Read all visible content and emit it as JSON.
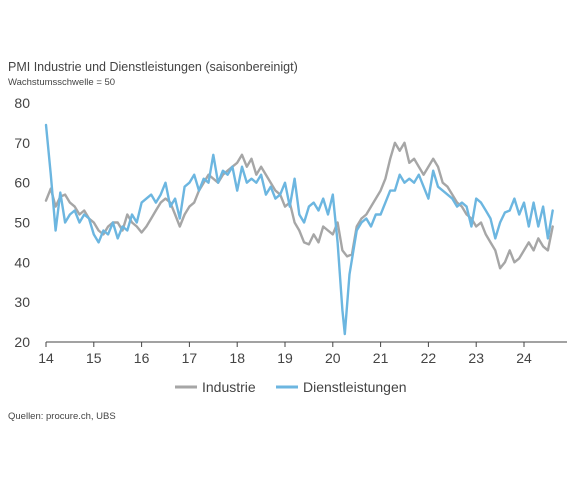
{
  "title": "PMI Industrie und Dienstleistungen (saisonbereinigt)",
  "subtitle": "Wachstumsschwelle = 50",
  "source": "Quellen: procure.ch, UBS",
  "chart_data": {
    "type": "line",
    "ylim": [
      20,
      80
    ],
    "yticks": [
      20,
      30,
      40,
      50,
      60,
      70,
      80
    ],
    "xlim": [
      2014,
      2024.9
    ],
    "xticks": [
      "14",
      "15",
      "16",
      "17",
      "18",
      "19",
      "20",
      "21",
      "22",
      "23",
      "24"
    ],
    "grid": false,
    "legend_position": "bottom",
    "colors": {
      "Industrie": "#a6a6a6",
      "Dienstleistungen": "#6cb6e0"
    },
    "series": [
      {
        "name": "Industrie",
        "color": "#a6a6a6",
        "points": [
          [
            2014.0,
            55.5
          ],
          [
            2014.1,
            58.5
          ],
          [
            2014.2,
            54
          ],
          [
            2014.3,
            56.5
          ],
          [
            2014.4,
            57
          ],
          [
            2014.5,
            55
          ],
          [
            2014.6,
            54
          ],
          [
            2014.7,
            52
          ],
          [
            2014.8,
            53
          ],
          [
            2014.9,
            51
          ],
          [
            2015.0,
            50
          ],
          [
            2015.1,
            48
          ],
          [
            2015.2,
            47
          ],
          [
            2015.3,
            49
          ],
          [
            2015.4,
            50
          ],
          [
            2015.5,
            50
          ],
          [
            2015.6,
            48
          ],
          [
            2015.7,
            52
          ],
          [
            2015.8,
            50
          ],
          [
            2015.9,
            49
          ],
          [
            2016.0,
            47.5
          ],
          [
            2016.1,
            49
          ],
          [
            2016.2,
            51
          ],
          [
            2016.3,
            53
          ],
          [
            2016.4,
            55
          ],
          [
            2016.5,
            56
          ],
          [
            2016.6,
            55
          ],
          [
            2016.7,
            52
          ],
          [
            2016.8,
            49
          ],
          [
            2016.9,
            52
          ],
          [
            2017.0,
            54
          ],
          [
            2017.1,
            55
          ],
          [
            2017.2,
            58
          ],
          [
            2017.3,
            60
          ],
          [
            2017.4,
            62
          ],
          [
            2017.5,
            61
          ],
          [
            2017.6,
            60
          ],
          [
            2017.7,
            62
          ],
          [
            2017.8,
            63
          ],
          [
            2017.9,
            64
          ],
          [
            2018.0,
            65
          ],
          [
            2018.1,
            67
          ],
          [
            2018.2,
            64
          ],
          [
            2018.3,
            66
          ],
          [
            2018.4,
            62
          ],
          [
            2018.5,
            64
          ],
          [
            2018.6,
            62
          ],
          [
            2018.7,
            60
          ],
          [
            2018.8,
            58
          ],
          [
            2018.9,
            57
          ],
          [
            2019.0,
            54
          ],
          [
            2019.1,
            55
          ],
          [
            2019.2,
            50
          ],
          [
            2019.3,
            48
          ],
          [
            2019.4,
            45
          ],
          [
            2019.5,
            44.5
          ],
          [
            2019.6,
            47
          ],
          [
            2019.7,
            45
          ],
          [
            2019.8,
            49
          ],
          [
            2019.9,
            48
          ],
          [
            2020.0,
            47
          ],
          [
            2020.1,
            50
          ],
          [
            2020.2,
            43
          ],
          [
            2020.3,
            41.5
          ],
          [
            2020.4,
            42
          ],
          [
            2020.5,
            49
          ],
          [
            2020.6,
            51
          ],
          [
            2020.7,
            52
          ],
          [
            2020.8,
            54
          ],
          [
            2020.9,
            56
          ],
          [
            2021.0,
            58
          ],
          [
            2021.1,
            61
          ],
          [
            2021.2,
            66
          ],
          [
            2021.3,
            70
          ],
          [
            2021.4,
            68
          ],
          [
            2021.5,
            70
          ],
          [
            2021.6,
            65
          ],
          [
            2021.7,
            66
          ],
          [
            2021.8,
            64
          ],
          [
            2021.9,
            62
          ],
          [
            2022.0,
            64
          ],
          [
            2022.1,
            66
          ],
          [
            2022.2,
            64
          ],
          [
            2022.3,
            60
          ],
          [
            2022.4,
            59
          ],
          [
            2022.5,
            57
          ],
          [
            2022.6,
            55
          ],
          [
            2022.7,
            54
          ],
          [
            2022.8,
            52
          ],
          [
            2022.9,
            51
          ],
          [
            2023.0,
            49
          ],
          [
            2023.1,
            50
          ],
          [
            2023.2,
            47
          ],
          [
            2023.3,
            45
          ],
          [
            2023.4,
            43
          ],
          [
            2023.5,
            38.5
          ],
          [
            2023.6,
            40
          ],
          [
            2023.7,
            43
          ],
          [
            2023.8,
            40
          ],
          [
            2023.9,
            41
          ],
          [
            2024.0,
            43
          ],
          [
            2024.1,
            45
          ],
          [
            2024.2,
            43
          ],
          [
            2024.3,
            46
          ],
          [
            2024.4,
            44
          ],
          [
            2024.5,
            43
          ],
          [
            2024.6,
            49
          ]
        ]
      },
      {
        "name": "Dienstleistungen",
        "color": "#6cb6e0",
        "points": [
          [
            2014.0,
            74.5
          ],
          [
            2014.1,
            62
          ],
          [
            2014.2,
            48
          ],
          [
            2014.3,
            57.5
          ],
          [
            2014.4,
            50
          ],
          [
            2014.5,
            52
          ],
          [
            2014.6,
            53
          ],
          [
            2014.7,
            50
          ],
          [
            2014.8,
            52
          ],
          [
            2014.9,
            51
          ],
          [
            2015.0,
            47
          ],
          [
            2015.1,
            45
          ],
          [
            2015.2,
            48
          ],
          [
            2015.3,
            47
          ],
          [
            2015.4,
            50
          ],
          [
            2015.5,
            46
          ],
          [
            2015.6,
            49
          ],
          [
            2015.7,
            48
          ],
          [
            2015.8,
            52
          ],
          [
            2015.9,
            50
          ],
          [
            2016.0,
            55
          ],
          [
            2016.1,
            56
          ],
          [
            2016.2,
            57
          ],
          [
            2016.3,
            55
          ],
          [
            2016.4,
            57
          ],
          [
            2016.5,
            60
          ],
          [
            2016.6,
            54
          ],
          [
            2016.7,
            56
          ],
          [
            2016.8,
            51
          ],
          [
            2016.9,
            59
          ],
          [
            2017.0,
            60
          ],
          [
            2017.1,
            62
          ],
          [
            2017.2,
            58
          ],
          [
            2017.3,
            61
          ],
          [
            2017.4,
            60
          ],
          [
            2017.5,
            67
          ],
          [
            2017.6,
            60
          ],
          [
            2017.7,
            63
          ],
          [
            2017.8,
            62
          ],
          [
            2017.9,
            64
          ],
          [
            2018.0,
            58
          ],
          [
            2018.1,
            64
          ],
          [
            2018.2,
            60
          ],
          [
            2018.3,
            61
          ],
          [
            2018.4,
            60
          ],
          [
            2018.5,
            62
          ],
          [
            2018.6,
            57
          ],
          [
            2018.7,
            59
          ],
          [
            2018.8,
            56
          ],
          [
            2018.9,
            57
          ],
          [
            2019.0,
            60
          ],
          [
            2019.1,
            54
          ],
          [
            2019.2,
            61
          ],
          [
            2019.3,
            52
          ],
          [
            2019.4,
            50
          ],
          [
            2019.5,
            54
          ],
          [
            2019.6,
            55
          ],
          [
            2019.7,
            53
          ],
          [
            2019.8,
            56
          ],
          [
            2019.9,
            52
          ],
          [
            2020.0,
            57
          ],
          [
            2020.1,
            45
          ],
          [
            2020.2,
            28
          ],
          [
            2020.25,
            22
          ],
          [
            2020.35,
            37
          ],
          [
            2020.5,
            48
          ],
          [
            2020.6,
            50
          ],
          [
            2020.7,
            51
          ],
          [
            2020.8,
            49
          ],
          [
            2020.9,
            52
          ],
          [
            2021.0,
            52
          ],
          [
            2021.1,
            55
          ],
          [
            2021.2,
            58
          ],
          [
            2021.3,
            58
          ],
          [
            2021.4,
            62
          ],
          [
            2021.5,
            60
          ],
          [
            2021.6,
            61
          ],
          [
            2021.7,
            60
          ],
          [
            2021.8,
            62
          ],
          [
            2021.9,
            59
          ],
          [
            2022.0,
            56
          ],
          [
            2022.1,
            63
          ],
          [
            2022.2,
            59
          ],
          [
            2022.3,
            58
          ],
          [
            2022.4,
            57
          ],
          [
            2022.5,
            56
          ],
          [
            2022.6,
            54
          ],
          [
            2022.7,
            55
          ],
          [
            2022.8,
            54
          ],
          [
            2022.9,
            49
          ],
          [
            2023.0,
            56
          ],
          [
            2023.1,
            55
          ],
          [
            2023.2,
            53
          ],
          [
            2023.3,
            51
          ],
          [
            2023.4,
            46
          ],
          [
            2023.5,
            50
          ],
          [
            2023.6,
            52.5
          ],
          [
            2023.7,
            53
          ],
          [
            2023.8,
            56
          ],
          [
            2023.9,
            52
          ],
          [
            2024.0,
            55
          ],
          [
            2024.1,
            49
          ],
          [
            2024.2,
            55
          ],
          [
            2024.3,
            49
          ],
          [
            2024.4,
            54
          ],
          [
            2024.5,
            46
          ],
          [
            2024.6,
            53
          ]
        ]
      }
    ]
  }
}
